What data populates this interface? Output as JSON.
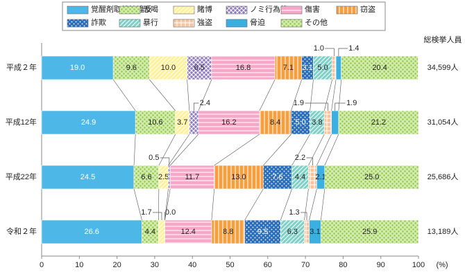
{
  "chart_data": {
    "type": "stacked_bar_horizontal",
    "categories": [
      "平成２年",
      "平成12年",
      "平成22年",
      "令和２年"
    ],
    "row_total_header": "総検挙人員",
    "row_totals": [
      "34,599人",
      "31,054人",
      "25,686人",
      "13,189人"
    ],
    "x_unit": "(%)",
    "xlim": [
      0,
      100
    ],
    "xticks": [
      0,
      10,
      20,
      30,
      40,
      50,
      60,
      70,
      80,
      90,
      100
    ],
    "series": [
      {
        "name": "覚醒剤取締法違反",
        "color": "#4db8e8",
        "pattern": "solid",
        "values": [
          19.0,
          24.9,
          24.5,
          26.6
        ],
        "value_labels": [
          "19.0",
          "24.9",
          "24.5",
          "26.6"
        ]
      },
      {
        "name": "恐喝",
        "color": "#8dc63f",
        "pattern": "dots",
        "values": [
          9.6,
          10.6,
          6.6,
          4.4
        ],
        "value_labels": [
          "9.6",
          "10.6",
          "6.6",
          "4.4"
        ]
      },
      {
        "name": "賭博",
        "color": "#fff19a",
        "pattern": "diag",
        "values": [
          10.0,
          3.7,
          2.5,
          1.7
        ],
        "value_labels": [
          "10.0",
          "3.7",
          "2.5",
          "1.7"
        ]
      },
      {
        "name": "ノミ行為等",
        "color": "#8b7bc0",
        "pattern": "cross",
        "values": [
          6.5,
          2.4,
          0.5,
          0.0
        ],
        "value_labels": [
          "6.5",
          "2.4",
          "0.5",
          "0.0"
        ]
      },
      {
        "name": "傷害",
        "color": "#f5a8c8",
        "pattern": "hlines",
        "values": [
          16.8,
          16.2,
          11.7,
          12.4
        ],
        "value_labels": [
          "16.8",
          "16.2",
          "11.7",
          "12.4"
        ]
      },
      {
        "name": "窃盗",
        "color": "#f5a040",
        "pattern": "vlines",
        "values": [
          7.1,
          8.4,
          13.0,
          8.8
        ],
        "value_labels": [
          "7.1",
          "8.4",
          "13.0",
          "8.8"
        ]
      },
      {
        "name": "詐欺",
        "color": "#2a6ebb",
        "pattern": "whitedots",
        "values": [
          3.1,
          5.0,
          7.6,
          9.5
        ],
        "value_labels": [
          "3.1",
          "5.0",
          "7.6",
          "9.5"
        ]
      },
      {
        "name": "暴行",
        "color": "#7fd1c8",
        "pattern": "diag",
        "values": [
          5.0,
          3.8,
          4.4,
          6.3
        ],
        "value_labels": [
          "5.0",
          "3.8",
          "4.4",
          "6.3"
        ]
      },
      {
        "name": "強盗",
        "color": "#f7c4a0",
        "pattern": "grid",
        "values": [
          1.0,
          1.9,
          2.2,
          1.3
        ],
        "value_labels": [
          "1.0",
          "1.9",
          "2.2",
          "1.3"
        ]
      },
      {
        "name": "脅迫",
        "color": "#3bb0e0",
        "pattern": "solid",
        "values": [
          1.4,
          1.9,
          2.1,
          3.1
        ],
        "value_labels": [
          "1.4",
          "1.9",
          "2.1",
          "3.1"
        ]
      },
      {
        "name": "その他",
        "color": "#8dc63f",
        "pattern": "dots",
        "values": [
          20.4,
          21.2,
          25.0,
          25.9
        ],
        "value_labels": [
          "20.4",
          "21.2",
          "25.0",
          "25.9"
        ]
      }
    ]
  }
}
